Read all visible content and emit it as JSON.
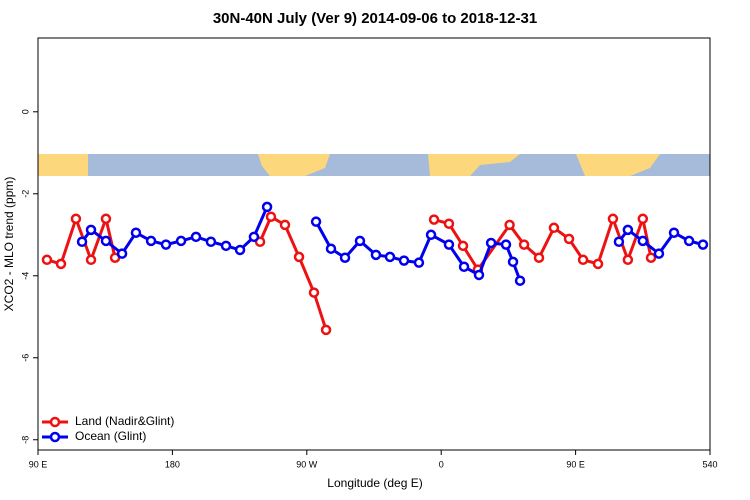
{
  "chart_data": {
    "type": "line",
    "title": "30N-40N July (Ver 9)   2014-09-06 to 2018-12-31",
    "x_label": "Longitude (deg E)",
    "y_label": "XCO2 - MLO trend (ppm)",
    "xlim": [
      90,
      540
    ],
    "xticks": [
      {
        "value": 90,
        "label": "90 E"
      },
      180,
      {
        "value": 270,
        "label": "90 W"
      },
      {
        "value": 360,
        "label": "0"
      },
      {
        "value": 450,
        "label": "90 E"
      },
      540
    ],
    "ylim": [
      -8.25,
      1.8
    ],
    "yticks": [
      0,
      -2,
      -4,
      -6,
      -8
    ],
    "legend": "bottom-left",
    "series": [
      {
        "name": "Land (Nadir&Glint)",
        "color": "#ee1111",
        "x": [
          96,
          105.4,
          115.4,
          125.5,
          135.5,
          141.6,
          null,
          238.7,
          246,
          255.4,
          264.8,
          274.8,
          282.9,
          null,
          355.2,
          365.2,
          374.6,
          384.6,
          405.8,
          415.5,
          425.5,
          435.5,
          445.6,
          455,
          465,
          475,
          485,
          495,
          500.5
        ],
        "values": [
          -3.61,
          -3.71,
          -2.61,
          -3.61,
          -2.61,
          -3.56,
          null,
          -3.17,
          -2.56,
          -2.76,
          -3.54,
          -4.41,
          -5.32,
          null,
          -2.63,
          -2.73,
          -3.27,
          -3.85,
          -2.76,
          -3.24,
          -3.56,
          -2.83,
          -3.1,
          -3.61,
          -3.71,
          -2.61,
          -3.61,
          -2.61,
          -3.56
        ]
      },
      {
        "name": "Ocean (Glint)",
        "color": "#0000ee",
        "x": [
          119.5,
          125.5,
          135.5,
          146.3,
          155.6,
          165.7,
          175.7,
          185.8,
          195.8,
          205.8,
          215.9,
          225.3,
          234.6,
          243.4,
          null,
          276.2,
          286.2,
          295.6,
          305.6,
          316.3,
          325.7,
          335.1,
          345.1,
          353.2,
          365.2,
          375.3,
          385.3,
          393.4,
          403.4,
          408.1,
          412.8,
          null,
          479,
          485,
          495,
          505.8,
          515.9,
          526,
          535.3
        ],
        "values": [
          -3.17,
          -2.88,
          -3.15,
          -3.46,
          -2.95,
          -3.15,
          -3.24,
          -3.15,
          -3.05,
          -3.17,
          -3.27,
          -3.37,
          -3.05,
          -2.32,
          null,
          -2.68,
          -3.34,
          -3.56,
          -3.15,
          -3.49,
          -3.54,
          -3.63,
          -3.68,
          -3.0,
          -3.24,
          -3.78,
          -3.98,
          -3.2,
          -3.24,
          -3.66,
          -4.12,
          null,
          -3.17,
          -2.88,
          -3.15,
          -3.46,
          -2.95,
          -3.15,
          -3.24
        ]
      }
    ]
  }
}
